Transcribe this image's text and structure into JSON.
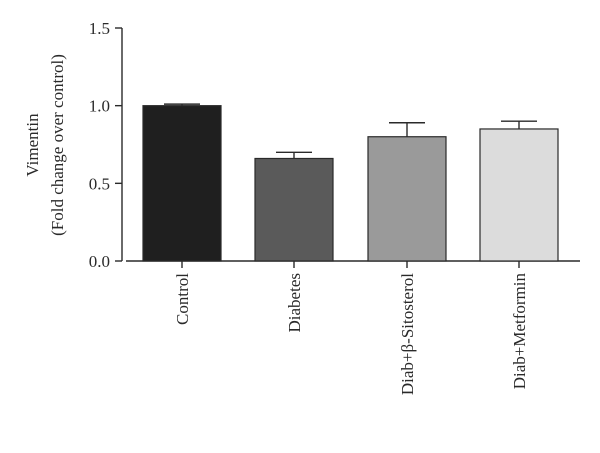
{
  "chart_data": {
    "type": "bar",
    "title": "",
    "ylabel_lines": [
      "Vimentin",
      "(Fold change over control)"
    ],
    "xlabel": "",
    "ylim": [
      0,
      1.5
    ],
    "yticks": [
      "0.0",
      "0.5",
      "1.0",
      "1.5"
    ],
    "ytick_values": [
      0,
      0.5,
      1.0,
      1.5
    ],
    "grid": false,
    "legend": "none",
    "categories": [
      "Control",
      "Diabetes",
      "Diab+β-Sitosterol",
      "Diab+Metformin"
    ],
    "values": [
      1.0,
      0.66,
      0.8,
      0.85
    ],
    "errors": [
      0.01,
      0.04,
      0.09,
      0.05
    ],
    "colors": [
      "#1f1f1f",
      "#5a5a5a",
      "#9a9a9a",
      "#dcdcdc"
    ]
  }
}
